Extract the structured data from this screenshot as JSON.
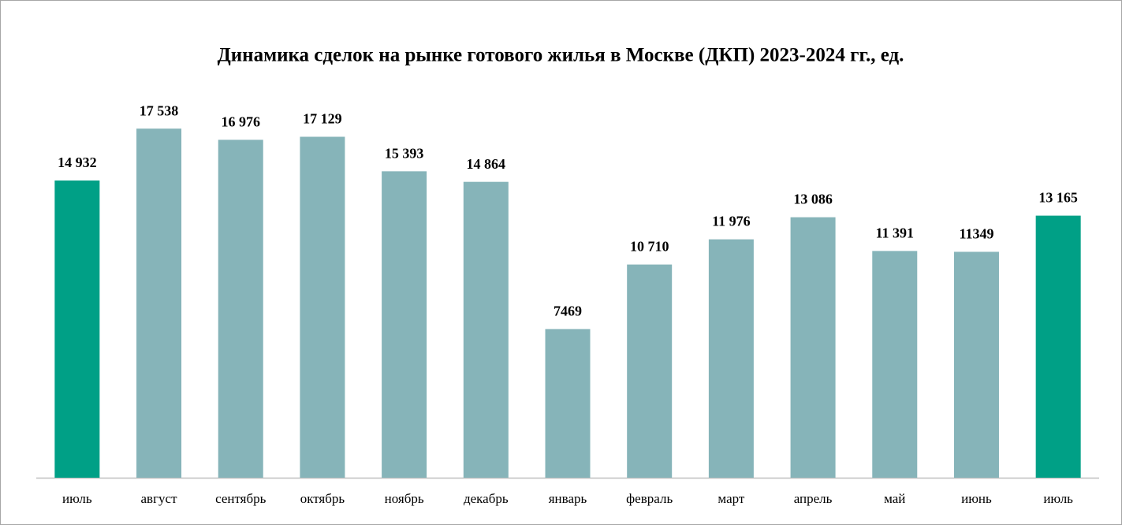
{
  "chart_data": {
    "type": "bar",
    "title": "Динамика сделок на рынке готового жилья в Москве (ДКП) 2023-2024 гг., ед.",
    "categories": [
      "июль",
      "август",
      "сентябрь",
      "октябрь",
      "ноябрь",
      "декабрь",
      "январь",
      "февраль",
      "март",
      "апрель",
      "май",
      "июнь",
      "июль"
    ],
    "values": [
      14932,
      17538,
      16976,
      17129,
      15393,
      14864,
      7469,
      10710,
      11976,
      13086,
      11391,
      11349,
      13165
    ],
    "value_labels": [
      "14 932",
      "17 538",
      "16 976",
      "17 129",
      "15 393",
      "14 864",
      "7469",
      "10 710",
      "11 976",
      "13 086",
      "11 391",
      "11349",
      "13 165"
    ],
    "colors": [
      "#00a086",
      "#86b4b9",
      "#86b4b9",
      "#86b4b9",
      "#86b4b9",
      "#86b4b9",
      "#86b4b9",
      "#86b4b9",
      "#86b4b9",
      "#86b4b9",
      "#86b4b9",
      "#86b4b9",
      "#00a086"
    ],
    "ylim": [
      0,
      20000
    ]
  }
}
